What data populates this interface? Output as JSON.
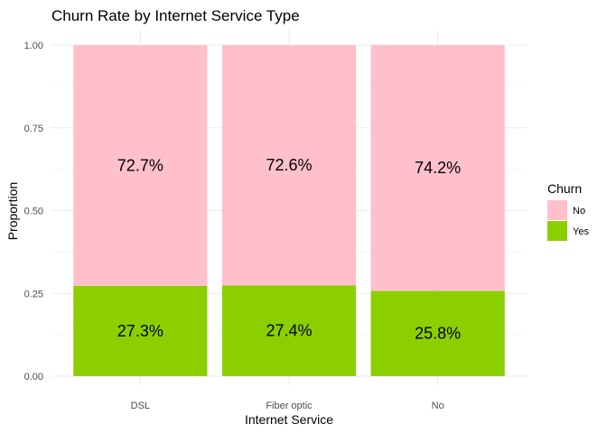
{
  "chart_data": {
    "type": "bar",
    "stacked": true,
    "title": "Churn Rate by Internet Service Type",
    "xlabel": "Internet Service",
    "ylabel": "Proportion",
    "categories": [
      "DSL",
      "Fiber optic",
      "No"
    ],
    "ylim": [
      0,
      1
    ],
    "yticks": [
      "0.00",
      "0.25",
      "0.50",
      "0.75",
      "1.00"
    ],
    "grid": true,
    "legend": {
      "title": "Churn",
      "position": "right"
    },
    "series": [
      {
        "name": "Yes",
        "color": "#8CCF00",
        "values": [
          0.273,
          0.274,
          0.258
        ],
        "labels": [
          "27.3%",
          "27.4%",
          "25.8%"
        ]
      },
      {
        "name": "No",
        "color": "#FFC0CB",
        "values": [
          0.727,
          0.726,
          0.742
        ],
        "labels": [
          "72.7%",
          "72.6%",
          "74.2%"
        ]
      }
    ],
    "legend_order": [
      "No",
      "Yes"
    ]
  }
}
